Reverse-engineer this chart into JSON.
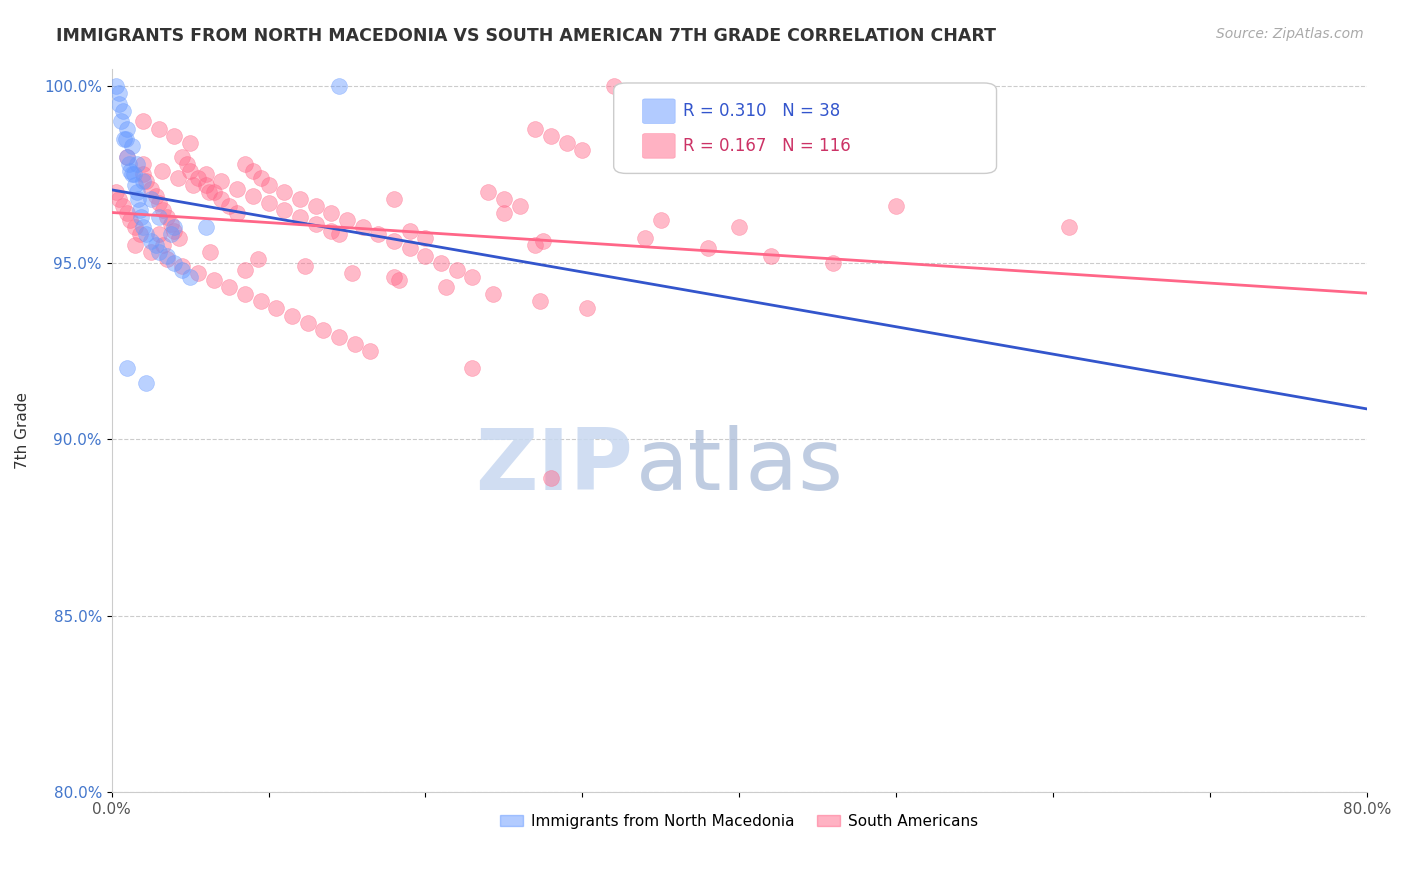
{
  "title": "IMMIGRANTS FROM NORTH MACEDONIA VS SOUTH AMERICAN 7TH GRADE CORRELATION CHART",
  "source": "Source: ZipAtlas.com",
  "ylabel": "7th Grade",
  "x_min": 0.0,
  "x_max": 0.8,
  "y_min": 0.8,
  "y_max": 1.005,
  "x_ticks": [
    0.0,
    0.1,
    0.2,
    0.3,
    0.4,
    0.5,
    0.6,
    0.7,
    0.8
  ],
  "x_tick_labels": [
    "0.0%",
    "",
    "",
    "",
    "",
    "",
    "",
    "",
    "80.0%"
  ],
  "y_ticks": [
    0.8,
    0.85,
    0.9,
    0.95,
    1.0
  ],
  "y_tick_labels": [
    "80.0%",
    "85.0%",
    "90.0%",
    "95.0%",
    "100.0%"
  ],
  "blue_R": 0.31,
  "blue_N": 38,
  "pink_R": 0.167,
  "pink_N": 116,
  "blue_color": "#6699FF",
  "pink_color": "#FF6688",
  "blue_line_color": "#3355CC",
  "pink_line_color": "#FF6688",
  "watermark_zip": "ZIP",
  "watermark_atlas": "atlas",
  "legend_label_blue": "Immigrants from North Macedonia",
  "legend_label_pink": "South Americans",
  "blue_scatter_x": [
    0.003,
    0.005,
    0.006,
    0.008,
    0.009,
    0.01,
    0.011,
    0.012,
    0.013,
    0.014,
    0.015,
    0.016,
    0.017,
    0.018,
    0.019,
    0.02,
    0.022,
    0.025,
    0.028,
    0.03,
    0.035,
    0.04,
    0.045,
    0.05,
    0.005,
    0.007,
    0.01,
    0.013,
    0.016,
    0.02,
    0.025,
    0.03,
    0.038,
    0.145,
    0.01,
    0.022,
    0.04,
    0.06
  ],
  "blue_scatter_y": [
    1.0,
    0.995,
    0.99,
    0.985,
    0.985,
    0.98,
    0.978,
    0.976,
    0.975,
    0.975,
    0.972,
    0.97,
    0.968,
    0.965,
    0.963,
    0.96,
    0.958,
    0.956,
    0.955,
    0.953,
    0.952,
    0.95,
    0.948,
    0.946,
    0.998,
    0.993,
    0.988,
    0.983,
    0.978,
    0.973,
    0.968,
    0.963,
    0.958,
    1.0,
    0.92,
    0.916,
    0.96,
    0.96
  ],
  "pink_scatter_x": [
    0.003,
    0.005,
    0.007,
    0.01,
    0.012,
    0.015,
    0.018,
    0.02,
    0.022,
    0.025,
    0.028,
    0.03,
    0.033,
    0.035,
    0.038,
    0.04,
    0.043,
    0.045,
    0.048,
    0.05,
    0.055,
    0.06,
    0.065,
    0.07,
    0.075,
    0.08,
    0.085,
    0.09,
    0.095,
    0.1,
    0.11,
    0.12,
    0.13,
    0.14,
    0.15,
    0.16,
    0.17,
    0.18,
    0.19,
    0.2,
    0.21,
    0.22,
    0.23,
    0.24,
    0.25,
    0.26,
    0.27,
    0.28,
    0.29,
    0.3,
    0.015,
    0.025,
    0.035,
    0.045,
    0.055,
    0.065,
    0.075,
    0.085,
    0.095,
    0.105,
    0.115,
    0.125,
    0.135,
    0.145,
    0.155,
    0.165,
    0.02,
    0.03,
    0.04,
    0.05,
    0.06,
    0.07,
    0.08,
    0.09,
    0.1,
    0.11,
    0.12,
    0.13,
    0.14,
    0.2,
    0.32,
    0.033,
    0.063,
    0.093,
    0.123,
    0.153,
    0.183,
    0.213,
    0.243,
    0.273,
    0.303,
    0.01,
    0.02,
    0.032,
    0.042,
    0.052,
    0.062,
    0.18,
    0.5,
    0.25,
    0.35,
    0.4,
    0.145,
    0.275,
    0.38,
    0.42,
    0.46,
    0.085,
    0.18,
    0.23,
    0.61,
    0.03,
    0.28,
    0.19,
    0.34,
    0.27
  ],
  "pink_scatter_y": [
    0.97,
    0.968,
    0.966,
    0.964,
    0.962,
    0.96,
    0.958,
    0.975,
    0.973,
    0.971,
    0.969,
    0.967,
    0.965,
    0.963,
    0.961,
    0.959,
    0.957,
    0.98,
    0.978,
    0.976,
    0.974,
    0.972,
    0.97,
    0.968,
    0.966,
    0.964,
    0.978,
    0.976,
    0.974,
    0.972,
    0.97,
    0.968,
    0.966,
    0.964,
    0.962,
    0.96,
    0.958,
    0.956,
    0.954,
    0.952,
    0.95,
    0.948,
    0.946,
    0.97,
    0.968,
    0.966,
    0.988,
    0.986,
    0.984,
    0.982,
    0.955,
    0.953,
    0.951,
    0.949,
    0.947,
    0.945,
    0.943,
    0.941,
    0.939,
    0.937,
    0.935,
    0.933,
    0.931,
    0.929,
    0.927,
    0.925,
    0.99,
    0.988,
    0.986,
    0.984,
    0.975,
    0.973,
    0.971,
    0.969,
    0.967,
    0.965,
    0.963,
    0.961,
    0.959,
    0.957,
    1.0,
    0.955,
    0.953,
    0.951,
    0.949,
    0.947,
    0.945,
    0.943,
    0.941,
    0.939,
    0.937,
    0.98,
    0.978,
    0.976,
    0.974,
    0.972,
    0.97,
    0.968,
    0.966,
    0.964,
    0.962,
    0.96,
    0.958,
    0.956,
    0.954,
    0.952,
    0.95,
    0.948,
    0.946,
    0.92,
    0.96,
    0.958,
    0.889,
    0.959,
    0.957,
    0.955
  ]
}
